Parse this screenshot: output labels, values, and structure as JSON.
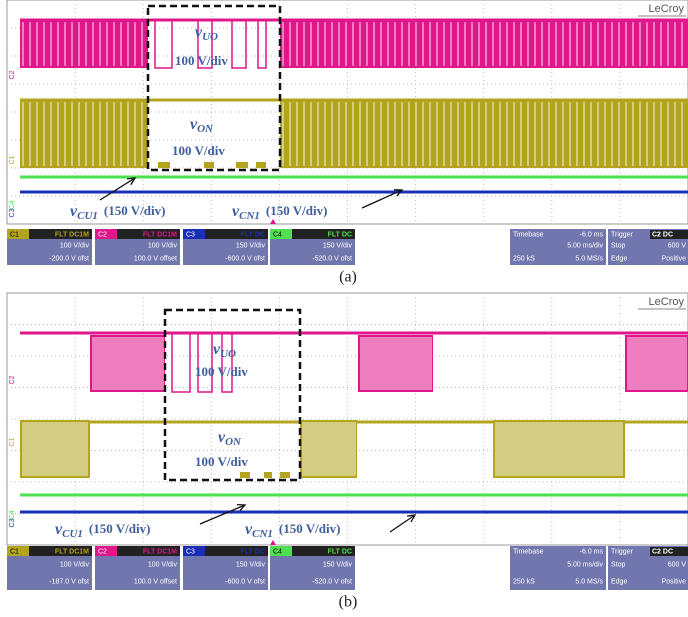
{
  "panels": [
    {
      "brand": "LeCroy",
      "trace_tags": [
        "C2",
        "C1",
        "C4",
        "C3"
      ],
      "annotations": [
        {
          "symbol": "v",
          "subscript": "UO",
          "scale": "100 V/div"
        },
        {
          "symbol": "v",
          "subscript": "ON",
          "scale": "100 V/div"
        },
        {
          "symbol": "v",
          "subscript": "CU1",
          "scale": "(150 V/div)"
        },
        {
          "symbol": "v",
          "subscript": "CN1",
          "scale": "(150 V/div)"
        }
      ],
      "channels": [
        {
          "name": "C1",
          "coupling": "FLT DC1M",
          "scale": "100 V/div",
          "offset": "-200.0 V ofst"
        },
        {
          "name": "C2",
          "coupling": "FLT DC1M",
          "scale": "100 V/div",
          "offset": "100.0 V offset"
        },
        {
          "name": "C3",
          "coupling": "FLT DC",
          "scale": "150 V/div",
          "offset": "-600.0 V ofst"
        },
        {
          "name": "C4",
          "coupling": "FLT DC",
          "scale": "150 V/div",
          "offset": "-520.0 V ofst"
        }
      ],
      "timebase": {
        "label": "Timebase",
        "delay": "-6.0 ms",
        "rate": "5.00 ms/div",
        "samples": "250 kS",
        "sample_rate": "5.0 MS/s"
      },
      "trigger": {
        "label": "Trigger",
        "source": "C2 DC",
        "mode": "Stop",
        "level": "600 V",
        "type": "Edge",
        "slope": "Positive"
      },
      "caption": "(a)"
    },
    {
      "brand": "LeCroy",
      "trace_tags": [
        "C2",
        "C1",
        "C4",
        "C3"
      ],
      "annotations": [
        {
          "symbol": "v",
          "subscript": "UO",
          "scale": "100 V/div"
        },
        {
          "symbol": "v",
          "subscript": "ON",
          "scale": "100 V/div"
        },
        {
          "symbol": "v",
          "subscript": "CU1",
          "scale": "(150 V/div)"
        },
        {
          "symbol": "v",
          "subscript": "CN1",
          "scale": "(150 V/div)"
        }
      ],
      "channels": [
        {
          "name": "C1",
          "coupling": "FLT DC1M",
          "scale": "100 V/div",
          "offset": "-187.0 V ofst"
        },
        {
          "name": "C2",
          "coupling": "FLT DC1M",
          "scale": "100 V/div",
          "offset": "100.0 V offset"
        },
        {
          "name": "C3",
          "coupling": "FLT DC",
          "scale": "150 V/div",
          "offset": "-600.0 V ofst"
        },
        {
          "name": "C4",
          "coupling": "FLT DC",
          "scale": "150 V/div",
          "offset": "-520.0 V ofst"
        }
      ],
      "timebase": {
        "label": "Timebase",
        "delay": "-6.0 ms",
        "rate": "5.00 ms/div",
        "samples": "250 kS",
        "sample_rate": "5.0 MS/s"
      },
      "trigger": {
        "label": "Trigger",
        "source": "C2 DC",
        "mode": "Stop",
        "level": "600 V",
        "type": "Edge",
        "slope": "Positive"
      },
      "caption": "(b)"
    }
  ]
}
